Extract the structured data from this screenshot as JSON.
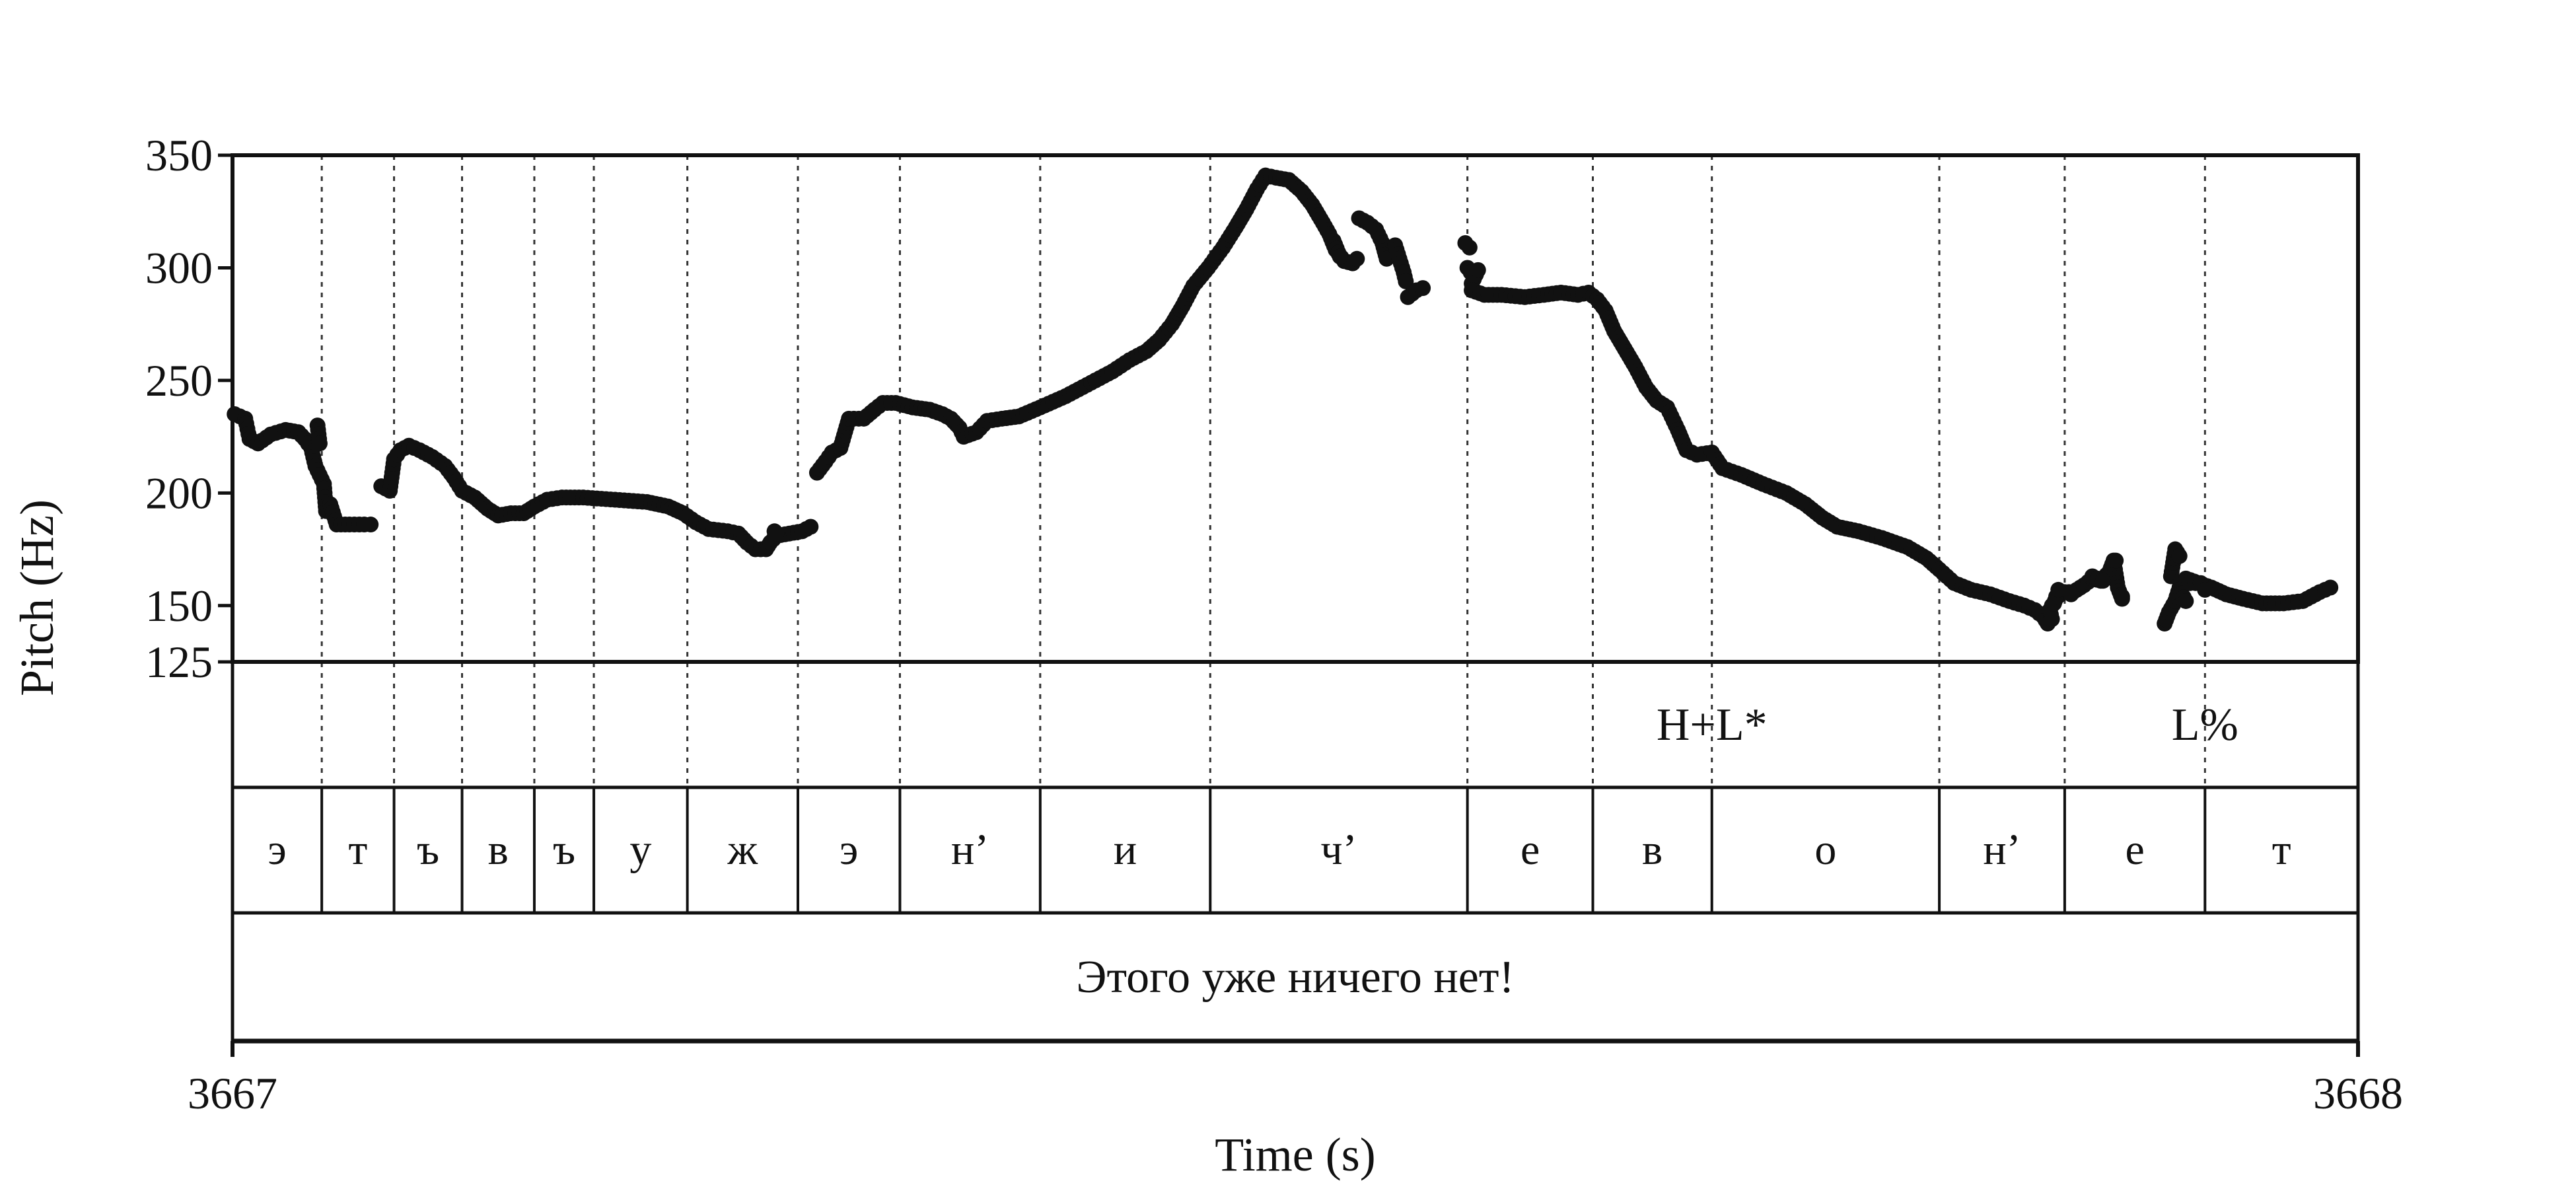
{
  "chart_data": {
    "type": "scatter",
    "title": "",
    "xlabel": "Time (s)",
    "ylabel": "Pitch (Hz)",
    "xlim": [
      3667,
      3668
    ],
    "ylim": [
      125,
      350
    ],
    "x_ticks": [
      "3667",
      "3668"
    ],
    "y_ticks": [
      {
        "value": 350,
        "label": "350"
      },
      {
        "value": 300,
        "label": "300"
      },
      {
        "value": 250,
        "label": "250"
      },
      {
        "value": 200,
        "label": "200"
      },
      {
        "value": 150,
        "label": "150"
      },
      {
        "value": 125,
        "label": "125"
      }
    ],
    "grid": false,
    "point_color": "#111111",
    "pitch_segments": [
      [
        [
          3667.001,
          235
        ],
        [
          3667.006,
          233
        ],
        [
          3667.008,
          224
        ],
        [
          3667.012,
          222
        ],
        [
          3667.018,
          226
        ],
        [
          3667.025,
          228
        ],
        [
          3667.031,
          227
        ],
        [
          3667.034,
          224
        ],
        [
          3667.037,
          220
        ],
        [
          3667.039,
          212
        ],
        [
          3667.041,
          208
        ],
        [
          3667.043,
          204
        ],
        [
          3667.044,
          192
        ],
        [
          3667.046,
          195
        ],
        [
          3667.049,
          186
        ],
        [
          3667.055,
          186
        ],
        [
          3667.062,
          186
        ],
        [
          3667.065,
          186
        ]
      ],
      [
        [
          3667.04,
          230
        ],
        [
          3667.041,
          222
        ]
      ],
      [
        [
          3667.07,
          203
        ],
        [
          3667.074,
          201
        ],
        [
          3667.076,
          215
        ],
        [
          3667.079,
          219
        ],
        [
          3667.083,
          221
        ],
        [
          3667.088,
          219
        ],
        [
          3667.094,
          216
        ],
        [
          3667.1,
          212
        ],
        [
          3667.104,
          207
        ],
        [
          3667.108,
          201
        ],
        [
          3667.114,
          198
        ],
        [
          3667.12,
          193
        ],
        [
          3667.125,
          190
        ],
        [
          3667.131,
          191
        ],
        [
          3667.137,
          191
        ],
        [
          3667.142,
          194
        ],
        [
          3667.148,
          197
        ],
        [
          3667.155,
          198
        ],
        [
          3667.165,
          198
        ],
        [
          3667.18,
          197
        ],
        [
          3667.195,
          196
        ],
        [
          3667.205,
          194
        ],
        [
          3667.212,
          191
        ],
        [
          3667.218,
          187
        ],
        [
          3667.224,
          184
        ],
        [
          3667.233,
          183
        ],
        [
          3667.238,
          182
        ],
        [
          3667.242,
          178
        ],
        [
          3667.246,
          175
        ],
        [
          3667.251,
          175
        ],
        [
          3667.253,
          178
        ],
        [
          3667.256,
          181
        ],
        [
          3667.262,
          182
        ],
        [
          3667.268,
          183
        ],
        [
          3667.272,
          185
        ]
      ],
      [
        [
          3667.255,
          183
        ]
      ],
      [
        [
          3667.256,
          182
        ]
      ],
      [
        [
          3667.275,
          209
        ],
        [
          3667.279,
          214
        ],
        [
          3667.282,
          218
        ],
        [
          3667.286,
          220
        ],
        [
          3667.29,
          233
        ],
        [
          3667.297,
          233
        ],
        [
          3667.302,
          237
        ],
        [
          3667.306,
          240
        ],
        [
          3667.312,
          240
        ],
        [
          3667.32,
          238
        ],
        [
          3667.328,
          237
        ],
        [
          3667.334,
          235
        ],
        [
          3667.338,
          233
        ],
        [
          3667.342,
          229
        ],
        [
          3667.344,
          225
        ],
        [
          3667.35,
          227
        ],
        [
          3667.355,
          232
        ],
        [
          3667.362,
          233
        ],
        [
          3667.37,
          234
        ],
        [
          3667.38,
          238
        ],
        [
          3667.392,
          243
        ],
        [
          3667.404,
          249
        ],
        [
          3667.414,
          254
        ],
        [
          3667.422,
          259
        ],
        [
          3667.43,
          263
        ],
        [
          3667.436,
          268
        ],
        [
          3667.442,
          275
        ],
        [
          3667.447,
          283
        ],
        [
          3667.452,
          292
        ],
        [
          3667.459,
          300
        ],
        [
          3667.466,
          309
        ],
        [
          3667.472,
          318
        ],
        [
          3667.477,
          326
        ],
        [
          3667.482,
          335
        ],
        [
          3667.486,
          341
        ],
        [
          3667.491,
          340
        ],
        [
          3667.497,
          339
        ],
        [
          3667.503,
          334
        ],
        [
          3667.508,
          328
        ],
        [
          3667.513,
          320
        ],
        [
          3667.516,
          315
        ],
        [
          3667.519,
          308
        ],
        [
          3667.523,
          303
        ],
        [
          3667.527,
          302
        ],
        [
          3667.529,
          304
        ]
      ],
      [
        [
          3667.518,
          312
        ],
        [
          3667.521,
          305
        ]
      ],
      [
        [
          3667.53,
          322
        ],
        [
          3667.534,
          320
        ],
        [
          3667.538,
          317
        ],
        [
          3667.541,
          311
        ],
        [
          3667.543,
          304
        ]
      ],
      [
        [
          3667.547,
          310
        ],
        [
          3667.549,
          304
        ],
        [
          3667.551,
          298
        ],
        [
          3667.552,
          294
        ]
      ],
      [
        [
          3667.553,
          287
        ],
        [
          3667.557,
          290
        ],
        [
          3667.56,
          291
        ]
      ],
      [
        [
          3667.581,
          300
        ],
        [
          3667.584,
          296
        ]
      ],
      [
        [
          3667.583,
          293
        ],
        [
          3667.586,
          299
        ]
      ],
      [
        [
          3667.58,
          311
        ],
        [
          3667.582,
          309
        ]
      ],
      [
        [
          3667.583,
          290
        ],
        [
          3667.589,
          288
        ],
        [
          3667.597,
          288
        ],
        [
          3667.608,
          287
        ],
        [
          3667.617,
          288
        ],
        [
          3667.625,
          289
        ],
        [
          3667.633,
          288
        ],
        [
          3667.638,
          289
        ],
        [
          3667.642,
          286
        ],
        [
          3667.646,
          281
        ],
        [
          3667.65,
          272
        ],
        [
          3667.655,
          264
        ],
        [
          3667.66,
          256
        ],
        [
          3667.665,
          247
        ],
        [
          3667.67,
          241
        ],
        [
          3667.675,
          238
        ],
        [
          3667.68,
          228
        ],
        [
          3667.684,
          219
        ],
        [
          3667.689,
          217
        ],
        [
          3667.696,
          218
        ],
        [
          3667.701,
          211
        ],
        [
          3667.71,
          208
        ],
        [
          3667.72,
          204
        ],
        [
          3667.731,
          200
        ],
        [
          3667.74,
          195
        ],
        [
          3667.748,
          189
        ],
        [
          3667.755,
          185
        ],
        [
          3667.765,
          183
        ],
        [
          3667.776,
          180
        ],
        [
          3667.788,
          176
        ],
        [
          3667.797,
          171
        ],
        [
          3667.803,
          166
        ],
        [
          3667.81,
          160
        ],
        [
          3667.818,
          157
        ],
        [
          3667.827,
          155
        ],
        [
          3667.836,
          152
        ],
        [
          3667.843,
          150
        ],
        [
          3667.848,
          148
        ],
        [
          3667.852,
          145
        ],
        [
          3667.854,
          142
        ]
      ],
      [
        [
          3667.856,
          150
        ],
        [
          3667.86,
          156
        ],
        [
          3667.866,
          156
        ],
        [
          3667.871,
          159
        ],
        [
          3667.875,
          162
        ],
        [
          3667.879,
          161
        ],
        [
          3667.883,
          165
        ],
        [
          3667.885,
          170
        ],
        [
          3667.887,
          158
        ],
        [
          3667.889,
          153
        ]
      ],
      [
        [
          3667.875,
          163
        ],
        [
          3667.88,
          161
        ]
      ],
      [
        [
          3667.855,
          148
        ],
        [
          3667.856,
          144
        ]
      ],
      [
        [
          3667.86,
          155
        ]
      ],
      [
        [
          3667.886,
          170
        ]
      ],
      [
        [
          3667.889,
          154
        ]
      ],
      [
        [
          3667.857,
          151
        ]
      ],
      [
        [
          3667.858,
          154
        ]
      ],
      [
        [
          3667.859,
          157
        ]
      ],
      [
        [
          3667.865,
          155
        ]
      ],
      [
        [
          3667.909,
          142
        ],
        [
          3667.911,
          147
        ],
        [
          3667.914,
          152
        ],
        [
          3667.916,
          158
        ],
        [
          3667.919,
          162
        ],
        [
          3667.925,
          160
        ],
        [
          3667.931,
          158
        ],
        [
          3667.938,
          155
        ],
        [
          3667.946,
          153
        ],
        [
          3667.955,
          151
        ],
        [
          3667.965,
          151
        ],
        [
          3667.974,
          152
        ],
        [
          3667.982,
          156
        ],
        [
          3667.987,
          158
        ]
      ],
      [
        [
          3667.912,
          163
        ],
        [
          3667.914,
          175
        ],
        [
          3667.916,
          172
        ]
      ],
      [
        [
          3667.916,
          157
        ],
        [
          3667.919,
          152
        ]
      ],
      [
        [
          3667.921,
          160
        ],
        [
          3667.926,
          160
        ]
      ],
      [
        [
          3667.928,
          157
        ]
      ]
    ],
    "segment_boundaries": [
      3667.042,
      3667.076,
      3667.108,
      3667.142,
      3667.17,
      3667.214,
      3667.266,
      3667.314,
      3667.38,
      3667.46,
      3667.581,
      3667.64,
      3667.696,
      3667.803,
      3667.862,
      3667.928
    ],
    "tone_tier": [
      {
        "time": 3667.696,
        "label": "H+L*"
      },
      {
        "time": 3667.928,
        "label": "L%"
      }
    ],
    "segment_tier": [
      "э",
      "т",
      "ъ",
      "в",
      "ъ",
      "у",
      "ж",
      "э",
      "н’",
      "и",
      "ч’",
      "е",
      "в",
      "о",
      "н’",
      "е",
      "т"
    ],
    "word_tier": "Этого уже ничего нет!"
  }
}
